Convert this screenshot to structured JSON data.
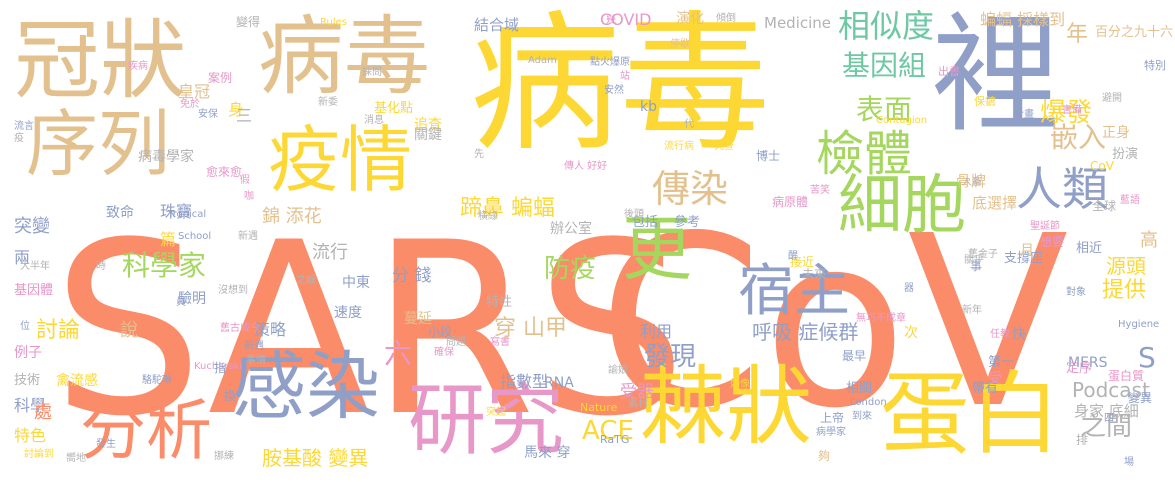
{
  "palette": {
    "orange": "#fb8c69",
    "yellow": "#fdd835",
    "tan": "#e3c18e",
    "slate": "#8f9fc8",
    "green": "#a5d75e",
    "pink": "#e797c8",
    "gray": "#b3b3b3",
    "teal": "#6fc8a4"
  },
  "words": [
    {
      "text": "SARS",
      "color": "orange"
    },
    {
      "text": "CoV",
      "color": "orange"
    },
    {
      "text": "病毒",
      "color": "yellow"
    },
    {
      "text": "裡",
      "color": "slate"
    },
    {
      "text": "冠狀",
      "color": "tan"
    },
    {
      "text": "病毒",
      "color": "tan"
    },
    {
      "text": "序列",
      "color": "tan"
    },
    {
      "text": "疫情",
      "color": "yellow"
    },
    {
      "text": "棘狀",
      "color": "yellow"
    },
    {
      "text": "蛋白",
      "color": "yellow"
    },
    {
      "text": "研究",
      "color": "pink"
    },
    {
      "text": "感染",
      "color": "slate"
    },
    {
      "text": "分析",
      "color": "orange"
    },
    {
      "text": "細胞",
      "color": "green"
    },
    {
      "text": "更",
      "color": "green"
    },
    {
      "text": "宿主",
      "color": "slate"
    },
    {
      "text": "檢體",
      "color": "green"
    },
    {
      "text": "傳染",
      "color": "tan"
    },
    {
      "text": "人類",
      "color": "slate"
    },
    {
      "text": "相似度",
      "color": "teal"
    },
    {
      "text": "基因組",
      "color": "teal"
    },
    {
      "text": "表面",
      "color": "green"
    },
    {
      "text": "嵌入",
      "color": "tan"
    },
    {
      "text": "爆發",
      "color": "yellow"
    },
    {
      "text": "年",
      "color": "tan"
    },
    {
      "text": "蝙蝠 採樣到",
      "color": "tan"
    },
    {
      "text": "百分之九十六",
      "color": "tan"
    },
    {
      "text": "COVID",
      "color": "pink"
    },
    {
      "text": "結合域",
      "color": "slate"
    },
    {
      "text": "演化",
      "color": "tan"
    },
    {
      "text": "Medicine",
      "color": "gray"
    },
    {
      "text": "科學家",
      "color": "green"
    },
    {
      "text": "防疫",
      "color": "green"
    },
    {
      "text": "發現",
      "color": "slate"
    },
    {
      "text": "蹄鼻 蝙蝠",
      "color": "yellow"
    },
    {
      "text": "ACE",
      "color": "yellow"
    },
    {
      "text": "S",
      "color": "slate"
    },
    {
      "text": "之間",
      "color": "gray"
    },
    {
      "text": "提供",
      "color": "yellow"
    },
    {
      "text": "源頭",
      "color": "yellow"
    },
    {
      "text": "高",
      "color": "tan"
    },
    {
      "text": "穿 山甲",
      "color": "tan"
    },
    {
      "text": "六",
      "color": "pink"
    },
    {
      "text": "討論",
      "color": "yellow"
    },
    {
      "text": "胺基酸 變異",
      "color": "yellow"
    },
    {
      "text": "呼吸 症候群",
      "color": "slate"
    },
    {
      "text": "Podcast",
      "color": "gray"
    },
    {
      "text": "身家 底細",
      "color": "gray"
    },
    {
      "text": "突變",
      "color": "slate"
    },
    {
      "text": "珠寶",
      "color": "slate"
    },
    {
      "text": "錦 添花",
      "color": "tan"
    },
    {
      "text": "流行",
      "color": "gray"
    },
    {
      "text": "分 錢",
      "color": "slate"
    },
    {
      "text": "利用",
      "color": "slate"
    },
    {
      "text": "受器",
      "color": "pink"
    },
    {
      "text": "指數型",
      "color": "slate"
    },
    {
      "text": "策略",
      "color": "slate"
    },
    {
      "text": "特色",
      "color": "yellow"
    },
    {
      "text": "科學",
      "color": "slate"
    },
    {
      "text": "骨牌",
      "color": "tan"
    },
    {
      "text": "底選擇",
      "color": "tan"
    },
    {
      "text": "人畜",
      "color": "gray"
    },
    {
      "text": "正身",
      "color": "tan"
    },
    {
      "text": "全球",
      "color": "gray"
    },
    {
      "text": "皇冠",
      "color": "tan"
    },
    {
      "text": "身",
      "color": "yellow"
    },
    {
      "text": "病毒學家",
      "color": "gray"
    },
    {
      "text": "致命",
      "color": "slate"
    },
    {
      "text": "篇",
      "color": "yellow"
    },
    {
      "text": "兩",
      "color": "slate"
    },
    {
      "text": "說",
      "color": "tan"
    },
    {
      "text": "處",
      "color": "orange"
    },
    {
      "text": "Tropical",
      "color": "slate"
    },
    {
      "text": "School",
      "color": "slate"
    },
    {
      "text": "Kucharski",
      "color": "pink"
    },
    {
      "text": "Nature",
      "color": "yellow"
    },
    {
      "text": "RaTG",
      "color": "slate"
    },
    {
      "text": "London",
      "color": "slate"
    },
    {
      "text": "MERS",
      "color": "slate"
    },
    {
      "text": "CoV",
      "color": "yellow"
    },
    {
      "text": "kb",
      "color": "slate"
    },
    {
      "text": "Adam",
      "color": "gray"
    },
    {
      "text": "Rules",
      "color": "yellow"
    },
    {
      "text": "Hygiene",
      "color": "slate"
    },
    {
      "text": "Contagion",
      "color": "yellow"
    },
    {
      "text": "RNA",
      "color": "slate"
    },
    {
      "text": "中東",
      "color": "slate"
    },
    {
      "text": "速度",
      "color": "slate"
    },
    {
      "text": "驗明",
      "color": "slate"
    },
    {
      "text": "基因體",
      "color": "pink"
    },
    {
      "text": "技術",
      "color": "gray"
    },
    {
      "text": "禽流感",
      "color": "yellow"
    },
    {
      "text": "例子",
      "color": "pink"
    },
    {
      "text": "馬來 穿",
      "color": "slate"
    },
    {
      "text": "蔓延",
      "color": "tan"
    },
    {
      "text": "特性",
      "color": "gray"
    },
    {
      "text": "小段",
      "color": "slate"
    },
    {
      "text": "包括",
      "color": "slate"
    },
    {
      "text": "參考",
      "color": "slate"
    },
    {
      "text": "辦公室",
      "color": "gray"
    },
    {
      "text": "追查",
      "color": "yellow"
    },
    {
      "text": "關鍵",
      "color": "gray"
    },
    {
      "text": "基化點",
      "color": "yellow"
    },
    {
      "text": "三",
      "color": "gray"
    },
    {
      "text": "案例",
      "color": "pink"
    },
    {
      "text": "變得",
      "color": "gray"
    },
    {
      "text": "愈來愈",
      "color": "pink"
    },
    {
      "text": "接近",
      "color": "yellow"
    },
    {
      "text": "未來",
      "color": "gray"
    },
    {
      "text": "病原體",
      "color": "pink"
    },
    {
      "text": "想要",
      "color": "pink"
    },
    {
      "text": "支撐座",
      "color": "slate"
    },
    {
      "text": "相近",
      "color": "slate"
    },
    {
      "text": "定序",
      "color": "pink"
    },
    {
      "text": "帶有",
      "color": "slate"
    },
    {
      "text": "第一",
      "color": "slate"
    },
    {
      "text": "事",
      "color": "slate"
    },
    {
      "text": "快",
      "color": "slate"
    },
    {
      "text": "次",
      "color": "yellow"
    },
    {
      "text": "受",
      "color": "pink"
    },
    {
      "text": "月",
      "color": "tan"
    },
    {
      "text": "蛋白質",
      "color": "pink"
    },
    {
      "text": "四",
      "color": "slate"
    },
    {
      "text": "變異",
      "color": "slate"
    },
    {
      "text": "排",
      "color": "gray"
    },
    {
      "text": "扮演",
      "color": "gray"
    },
    {
      "text": "特別",
      "color": "slate"
    },
    {
      "text": "出書",
      "color": "pink"
    },
    {
      "text": "保鑣",
      "color": "yellow"
    },
    {
      "text": "計畫",
      "color": "slate"
    },
    {
      "text": "書備",
      "color": "pink"
    },
    {
      "text": "避開",
      "color": "gray"
    },
    {
      "text": "藍語",
      "color": "pink"
    },
    {
      "text": "聖誕節",
      "color": "pink"
    },
    {
      "text": "對象",
      "color": "slate"
    },
    {
      "text": "新年",
      "color": "gray"
    },
    {
      "text": "任教",
      "color": "pink"
    },
    {
      "text": "最早",
      "color": "slate"
    },
    {
      "text": "上帝",
      "color": "slate"
    },
    {
      "text": "相關",
      "color": "slate"
    },
    {
      "text": "夠",
      "color": "tan"
    },
    {
      "text": "指",
      "color": "slate"
    },
    {
      "text": "換",
      "color": "slate"
    },
    {
      "text": "位",
      "color": "slate"
    },
    {
      "text": "時",
      "color": "gray"
    },
    {
      "text": "大半年",
      "color": "gray"
    },
    {
      "text": "流言",
      "color": "slate"
    },
    {
      "text": "疫",
      "color": "gray"
    },
    {
      "text": "疾病",
      "color": "pink"
    },
    {
      "text": "免於",
      "color": "pink"
    },
    {
      "text": "安保",
      "color": "slate"
    },
    {
      "text": "消息",
      "color": "gray"
    },
    {
      "text": "新委",
      "color": "gray"
    },
    {
      "text": "採問",
      "color": "gray"
    },
    {
      "text": "停歇",
      "color": "tan"
    },
    {
      "text": "傾倒",
      "color": "gray"
    },
    {
      "text": "點火爆原",
      "color": "slate"
    },
    {
      "text": "安然",
      "color": "slate"
    },
    {
      "text": "流行病",
      "color": "yellow"
    },
    {
      "text": "究查",
      "color": "yellow"
    },
    {
      "text": "傳人 好好",
      "color": "pink"
    },
    {
      "text": "博士",
      "color": "slate"
    },
    {
      "text": "代",
      "color": "gray"
    },
    {
      "text": "先",
      "color": "gray"
    },
    {
      "text": "苦笑",
      "color": "pink"
    },
    {
      "text": "發生",
      "color": "slate"
    },
    {
      "text": "討論到",
      "color": "yellow"
    },
    {
      "text": "無巧不成章",
      "color": "pink"
    },
    {
      "text": "器",
      "color": "slate"
    },
    {
      "text": "醒",
      "color": "slate"
    },
    {
      "text": "關乎",
      "color": "gray"
    },
    {
      "text": "舊金子",
      "color": "gray"
    },
    {
      "text": "素材",
      "color": "gray"
    },
    {
      "text": "突起",
      "color": "yellow"
    },
    {
      "text": "確保",
      "color": "pink"
    },
    {
      "text": "好像",
      "color": "yellow"
    },
    {
      "text": "員",
      "color": "slate"
    },
    {
      "text": "沒想到",
      "color": "gray"
    },
    {
      "text": "之爺",
      "color": "gray"
    },
    {
      "text": "新遇",
      "color": "gray"
    },
    {
      "text": "假",
      "color": "pink"
    },
    {
      "text": "咖",
      "color": "pink"
    },
    {
      "text": "事情",
      "color": "gray"
    },
    {
      "text": "駱駝琳",
      "color": "slate"
    },
    {
      "text": "挪練",
      "color": "gray"
    },
    {
      "text": "到來",
      "color": "slate"
    },
    {
      "text": "病學家",
      "color": "slate"
    },
    {
      "text": "問題",
      "color": "gray"
    },
    {
      "text": "寫書",
      "color": "pink"
    },
    {
      "text": "幾",
      "color": "pink"
    },
    {
      "text": "站",
      "color": "pink"
    },
    {
      "text": "橫緣",
      "color": "gray"
    },
    {
      "text": "後頭",
      "color": "gray"
    },
    {
      "text": "諭娘",
      "color": "gray"
    },
    {
      "text": "舊古戚今",
      "color": "pink"
    },
    {
      "text": "新遇",
      "color": "slate"
    },
    {
      "text": "嚮地",
      "color": "gray"
    },
    {
      "text": "場",
      "color": "slate"
    }
  ]
}
